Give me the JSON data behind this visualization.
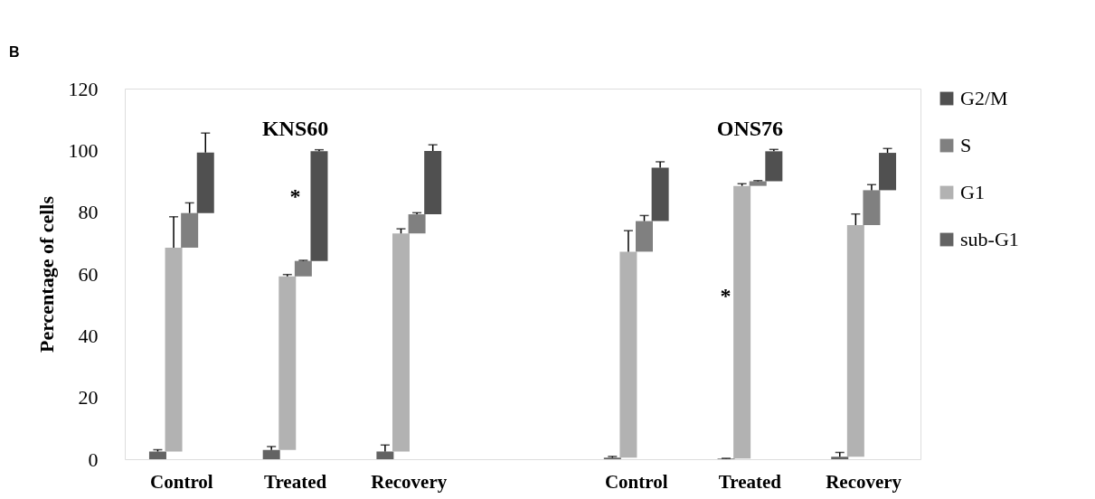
{
  "chart_data": {
    "type": "bar",
    "ylabel": "Percentage of cells",
    "categories": [
      "Control",
      "Treated",
      "Recovery",
      null,
      "Control",
      "Treated",
      "Recovery"
    ],
    "series": [
      {
        "name": "sub-G1",
        "color": "#636363",
        "base": [
          0,
          0,
          0,
          null,
          0,
          0,
          0
        ],
        "values": [
          2.5,
          3.0,
          2.5,
          null,
          0.5,
          0.2,
          0.8
        ],
        "errors": [
          [
            2.5,
            3.1
          ],
          [
            3.0,
            4.1
          ],
          [
            2.5,
            4.6
          ],
          null,
          [
            0.5,
            0.9
          ],
          [
            0.2,
            0.3
          ],
          [
            0.8,
            2.2
          ]
        ]
      },
      {
        "name": "G1",
        "color": "#b2b2b2",
        "base": [
          2.5,
          3.0,
          2.5,
          null,
          0.5,
          0.2,
          0.8
        ],
        "values": [
          66,
          56.2,
          70.6,
          null,
          66.7,
          88.3,
          75
        ],
        "errors": [
          [
            68.5,
            78.5
          ],
          [
            59.2,
            59.8
          ],
          [
            73.1,
            74.6
          ],
          null,
          [
            67.2,
            74
          ],
          [
            88.5,
            89.2
          ],
          [
            75.8,
            79.4
          ]
        ]
      },
      {
        "name": "S",
        "color": "#808080",
        "base": [
          68.5,
          59.2,
          73.1,
          null,
          67.2,
          88.5,
          75.8
        ],
        "values": [
          11.2,
          5.0,
          6.2,
          null,
          9.9,
          1.5,
          11.3
        ],
        "errors": [
          [
            79.7,
            83
          ],
          [
            64.2,
            64.4
          ],
          [
            79.3,
            79.8
          ],
          null,
          [
            77.1,
            78.9
          ],
          [
            90.0,
            90.2
          ],
          [
            87.1,
            88.9
          ]
        ]
      },
      {
        "name": "G2/M",
        "color": "#505050",
        "base": [
          79.7,
          64.2,
          79.3,
          null,
          77.1,
          90.0,
          87.1
        ],
        "values": [
          19.6,
          35.5,
          20.5,
          null,
          17.3,
          9.7,
          12.1
        ],
        "errors": [
          [
            99.3,
            105.6
          ],
          [
            99.7,
            100.2
          ],
          [
            99.8,
            101.8
          ],
          null,
          [
            94.4,
            96.3
          ],
          [
            99.7,
            100.3
          ],
          [
            99.2,
            100.6
          ]
        ]
      }
    ],
    "ylim": [
      0,
      120
    ],
    "yticks": [
      0,
      20,
      40,
      60,
      80,
      100,
      120
    ],
    "grid": false,
    "legend": "right",
    "annotations": [
      "B",
      "KNS60",
      "ONS76",
      "*",
      "*"
    ]
  }
}
